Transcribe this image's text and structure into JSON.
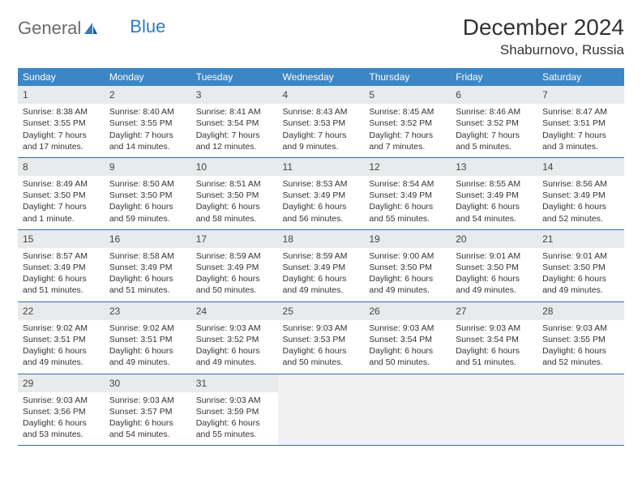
{
  "logo": {
    "text1": "General",
    "text2": "Blue"
  },
  "title": "December 2024",
  "location": "Shaburnovo, Russia",
  "colors": {
    "header_bg": "#3c86c6",
    "header_text": "#ffffff",
    "daynum_bg": "#e9eaeb",
    "cell_border": "#2f6fa8",
    "logo_gray": "#6b6b6b",
    "logo_blue": "#2f7ac0"
  },
  "weekdays": [
    "Sunday",
    "Monday",
    "Tuesday",
    "Wednesday",
    "Thursday",
    "Friday",
    "Saturday"
  ],
  "weeks": [
    [
      {
        "day": "1",
        "sunrise": "Sunrise: 8:38 AM",
        "sunset": "Sunset: 3:55 PM",
        "d1": "Daylight: 7 hours",
        "d2": "and 17 minutes."
      },
      {
        "day": "2",
        "sunrise": "Sunrise: 8:40 AM",
        "sunset": "Sunset: 3:55 PM",
        "d1": "Daylight: 7 hours",
        "d2": "and 14 minutes."
      },
      {
        "day": "3",
        "sunrise": "Sunrise: 8:41 AM",
        "sunset": "Sunset: 3:54 PM",
        "d1": "Daylight: 7 hours",
        "d2": "and 12 minutes."
      },
      {
        "day": "4",
        "sunrise": "Sunrise: 8:43 AM",
        "sunset": "Sunset: 3:53 PM",
        "d1": "Daylight: 7 hours",
        "d2": "and 9 minutes."
      },
      {
        "day": "5",
        "sunrise": "Sunrise: 8:45 AM",
        "sunset": "Sunset: 3:52 PM",
        "d1": "Daylight: 7 hours",
        "d2": "and 7 minutes."
      },
      {
        "day": "6",
        "sunrise": "Sunrise: 8:46 AM",
        "sunset": "Sunset: 3:52 PM",
        "d1": "Daylight: 7 hours",
        "d2": "and 5 minutes."
      },
      {
        "day": "7",
        "sunrise": "Sunrise: 8:47 AM",
        "sunset": "Sunset: 3:51 PM",
        "d1": "Daylight: 7 hours",
        "d2": "and 3 minutes."
      }
    ],
    [
      {
        "day": "8",
        "sunrise": "Sunrise: 8:49 AM",
        "sunset": "Sunset: 3:50 PM",
        "d1": "Daylight: 7 hours",
        "d2": "and 1 minute."
      },
      {
        "day": "9",
        "sunrise": "Sunrise: 8:50 AM",
        "sunset": "Sunset: 3:50 PM",
        "d1": "Daylight: 6 hours",
        "d2": "and 59 minutes."
      },
      {
        "day": "10",
        "sunrise": "Sunrise: 8:51 AM",
        "sunset": "Sunset: 3:50 PM",
        "d1": "Daylight: 6 hours",
        "d2": "and 58 minutes."
      },
      {
        "day": "11",
        "sunrise": "Sunrise: 8:53 AM",
        "sunset": "Sunset: 3:49 PM",
        "d1": "Daylight: 6 hours",
        "d2": "and 56 minutes."
      },
      {
        "day": "12",
        "sunrise": "Sunrise: 8:54 AM",
        "sunset": "Sunset: 3:49 PM",
        "d1": "Daylight: 6 hours",
        "d2": "and 55 minutes."
      },
      {
        "day": "13",
        "sunrise": "Sunrise: 8:55 AM",
        "sunset": "Sunset: 3:49 PM",
        "d1": "Daylight: 6 hours",
        "d2": "and 54 minutes."
      },
      {
        "day": "14",
        "sunrise": "Sunrise: 8:56 AM",
        "sunset": "Sunset: 3:49 PM",
        "d1": "Daylight: 6 hours",
        "d2": "and 52 minutes."
      }
    ],
    [
      {
        "day": "15",
        "sunrise": "Sunrise: 8:57 AM",
        "sunset": "Sunset: 3:49 PM",
        "d1": "Daylight: 6 hours",
        "d2": "and 51 minutes."
      },
      {
        "day": "16",
        "sunrise": "Sunrise: 8:58 AM",
        "sunset": "Sunset: 3:49 PM",
        "d1": "Daylight: 6 hours",
        "d2": "and 51 minutes."
      },
      {
        "day": "17",
        "sunrise": "Sunrise: 8:59 AM",
        "sunset": "Sunset: 3:49 PM",
        "d1": "Daylight: 6 hours",
        "d2": "and 50 minutes."
      },
      {
        "day": "18",
        "sunrise": "Sunrise: 8:59 AM",
        "sunset": "Sunset: 3:49 PM",
        "d1": "Daylight: 6 hours",
        "d2": "and 49 minutes."
      },
      {
        "day": "19",
        "sunrise": "Sunrise: 9:00 AM",
        "sunset": "Sunset: 3:50 PM",
        "d1": "Daylight: 6 hours",
        "d2": "and 49 minutes."
      },
      {
        "day": "20",
        "sunrise": "Sunrise: 9:01 AM",
        "sunset": "Sunset: 3:50 PM",
        "d1": "Daylight: 6 hours",
        "d2": "and 49 minutes."
      },
      {
        "day": "21",
        "sunrise": "Sunrise: 9:01 AM",
        "sunset": "Sunset: 3:50 PM",
        "d1": "Daylight: 6 hours",
        "d2": "and 49 minutes."
      }
    ],
    [
      {
        "day": "22",
        "sunrise": "Sunrise: 9:02 AM",
        "sunset": "Sunset: 3:51 PM",
        "d1": "Daylight: 6 hours",
        "d2": "and 49 minutes."
      },
      {
        "day": "23",
        "sunrise": "Sunrise: 9:02 AM",
        "sunset": "Sunset: 3:51 PM",
        "d1": "Daylight: 6 hours",
        "d2": "and 49 minutes."
      },
      {
        "day": "24",
        "sunrise": "Sunrise: 9:03 AM",
        "sunset": "Sunset: 3:52 PM",
        "d1": "Daylight: 6 hours",
        "d2": "and 49 minutes."
      },
      {
        "day": "25",
        "sunrise": "Sunrise: 9:03 AM",
        "sunset": "Sunset: 3:53 PM",
        "d1": "Daylight: 6 hours",
        "d2": "and 50 minutes."
      },
      {
        "day": "26",
        "sunrise": "Sunrise: 9:03 AM",
        "sunset": "Sunset: 3:54 PM",
        "d1": "Daylight: 6 hours",
        "d2": "and 50 minutes."
      },
      {
        "day": "27",
        "sunrise": "Sunrise: 9:03 AM",
        "sunset": "Sunset: 3:54 PM",
        "d1": "Daylight: 6 hours",
        "d2": "and 51 minutes."
      },
      {
        "day": "28",
        "sunrise": "Sunrise: 9:03 AM",
        "sunset": "Sunset: 3:55 PM",
        "d1": "Daylight: 6 hours",
        "d2": "and 52 minutes."
      }
    ],
    [
      {
        "day": "29",
        "sunrise": "Sunrise: 9:03 AM",
        "sunset": "Sunset: 3:56 PM",
        "d1": "Daylight: 6 hours",
        "d2": "and 53 minutes."
      },
      {
        "day": "30",
        "sunrise": "Sunrise: 9:03 AM",
        "sunset": "Sunset: 3:57 PM",
        "d1": "Daylight: 6 hours",
        "d2": "and 54 minutes."
      },
      {
        "day": "31",
        "sunrise": "Sunrise: 9:03 AM",
        "sunset": "Sunset: 3:59 PM",
        "d1": "Daylight: 6 hours",
        "d2": "and 55 minutes."
      },
      {
        "empty": true
      },
      {
        "empty": true
      },
      {
        "empty": true
      },
      {
        "empty": true
      }
    ]
  ]
}
